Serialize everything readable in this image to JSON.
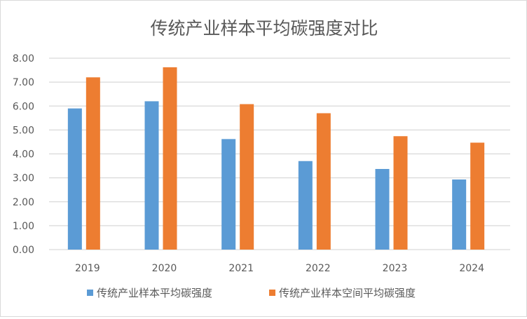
{
  "chart_data": {
    "type": "bar",
    "title": "传统产业样本平均碳强度对比",
    "xlabel": "",
    "ylabel": "",
    "categories": [
      "2019",
      "2020",
      "2021",
      "2022",
      "2023",
      "2024"
    ],
    "series": [
      {
        "name": "传统产业样本平均碳强度",
        "color": "#5b9bd5",
        "values": [
          5.9,
          6.2,
          4.62,
          3.7,
          3.37,
          2.93
        ]
      },
      {
        "name": "传统产业样本空间平均碳强度",
        "color": "#ed7d31",
        "values": [
          7.2,
          7.62,
          6.08,
          5.7,
          4.74,
          4.47
        ]
      }
    ],
    "ylim": [
      0,
      8
    ],
    "yticks": [
      "0.00",
      "1.00",
      "2.00",
      "3.00",
      "4.00",
      "5.00",
      "6.00",
      "7.00",
      "8.00"
    ],
    "grid": true,
    "legend": "bottom"
  }
}
